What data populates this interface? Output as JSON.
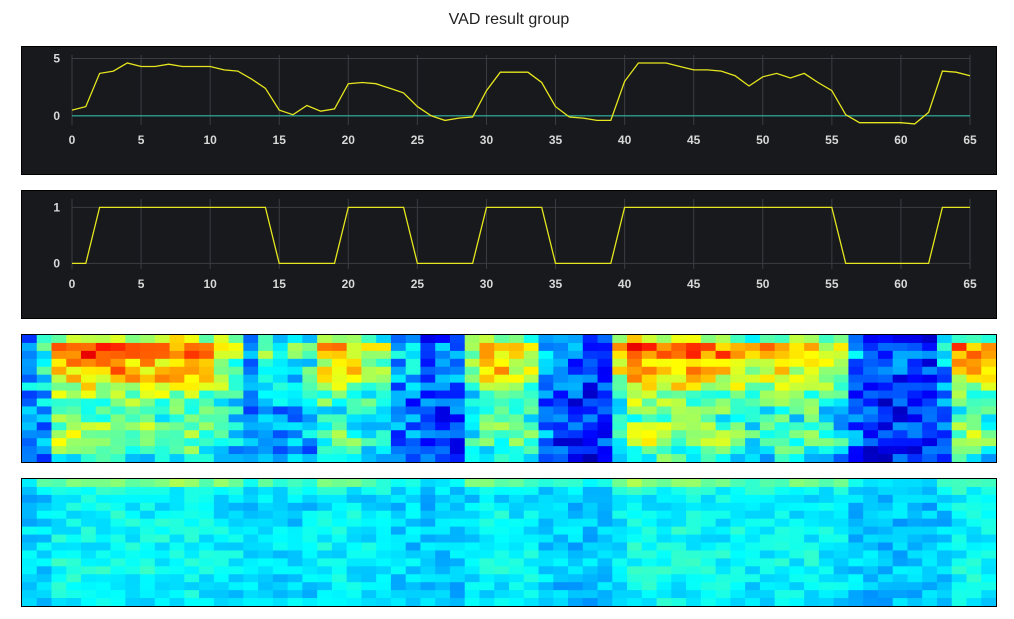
{
  "title": "VAD result group",
  "colors": {
    "background": "#ffffff",
    "plot_background": "#17191d",
    "grid": "#3a3d42",
    "line": "#e6e61e",
    "zero_line": "#2fb5a3",
    "tick_text": "#d8d8d8"
  },
  "chart_data": [
    {
      "type": "line",
      "x": [
        0,
        1,
        2,
        3,
        4,
        5,
        6,
        7,
        8,
        9,
        10,
        11,
        12,
        13,
        14,
        15,
        16,
        17,
        18,
        19,
        20,
        21,
        22,
        23,
        24,
        25,
        26,
        27,
        28,
        29,
        30,
        31,
        32,
        33,
        34,
        35,
        36,
        37,
        38,
        39,
        40,
        41,
        42,
        43,
        44,
        45,
        46,
        47,
        48,
        49,
        50,
        51,
        52,
        53,
        54,
        55,
        56,
        57,
        58,
        59,
        60,
        61,
        62,
        63,
        64,
        65
      ],
      "series": [
        {
          "values": [
            0.5,
            0.8,
            3.7,
            3.9,
            4.6,
            4.3,
            4.3,
            4.5,
            4.3,
            4.3,
            4.3,
            4.0,
            3.9,
            3.2,
            2.4,
            0.5,
            0.1,
            0.9,
            0.4,
            0.6,
            2.8,
            2.9,
            2.8,
            2.4,
            2.0,
            0.8,
            0.0,
            -0.4,
            -0.2,
            -0.1,
            2.2,
            3.8,
            3.8,
            3.8,
            2.9,
            0.8,
            -0.1,
            -0.2,
            -0.4,
            -0.4,
            3.0,
            4.6,
            4.6,
            4.6,
            4.3,
            4.0,
            4.0,
            3.9,
            3.5,
            2.6,
            3.4,
            3.7,
            3.3,
            3.7,
            2.9,
            2.2,
            0.1,
            -0.6,
            -0.6,
            -0.6,
            -0.6,
            -0.7,
            0.3,
            3.9,
            3.8,
            3.5
          ]
        }
      ],
      "xticks": [
        0,
        5,
        10,
        15,
        20,
        25,
        30,
        35,
        40,
        45,
        50,
        55,
        60,
        65
      ],
      "yticks": [
        0,
        5
      ],
      "xlim": [
        0,
        65
      ],
      "ylim": [
        -0.8,
        5.3
      ],
      "grid": true,
      "zero_line": true
    },
    {
      "type": "line",
      "x": [
        0,
        1,
        2,
        3,
        4,
        5,
        6,
        7,
        8,
        9,
        10,
        11,
        12,
        13,
        14,
        15,
        16,
        17,
        18,
        19,
        20,
        21,
        22,
        23,
        24,
        25,
        26,
        27,
        28,
        29,
        30,
        31,
        32,
        33,
        34,
        35,
        36,
        37,
        38,
        39,
        40,
        41,
        42,
        43,
        44,
        45,
        46,
        47,
        48,
        49,
        50,
        51,
        52,
        53,
        54,
        55,
        56,
        57,
        58,
        59,
        60,
        61,
        62,
        63,
        64,
        65
      ],
      "series": [
        {
          "values": [
            0,
            0,
            1,
            1,
            1,
            1,
            1,
            1,
            1,
            1,
            1,
            1,
            1,
            1,
            1,
            0,
            0,
            0,
            0,
            0,
            1,
            1,
            1,
            1,
            1,
            0,
            0,
            0,
            0,
            0,
            1,
            1,
            1,
            1,
            1,
            0,
            0,
            0,
            0,
            0,
            1,
            1,
            1,
            1,
            1,
            1,
            1,
            1,
            1,
            1,
            1,
            1,
            1,
            1,
            1,
            1,
            0,
            0,
            0,
            0,
            0,
            0,
            0,
            1,
            1,
            1
          ]
        }
      ],
      "xticks": [
        0,
        5,
        10,
        15,
        20,
        25,
        30,
        35,
        40,
        45,
        50,
        55,
        60,
        65
      ],
      "yticks": [
        0,
        1
      ],
      "xlim": [
        0,
        65
      ],
      "ylim": [
        -0.1,
        1.15
      ],
      "grid": true,
      "zero_line": false
    },
    {
      "type": "heatmap",
      "columns": 66,
      "rows": 16,
      "colormap": "jet",
      "row_profile": [
        0.55,
        0.82,
        0.8,
        0.7,
        0.72,
        0.65,
        0.58,
        0.5,
        0.45,
        0.42,
        0.4,
        0.45,
        0.5,
        0.5,
        0.42,
        0.35
      ],
      "frame_energy": [
        0.35,
        0.45,
        0.95,
        0.95,
        1.0,
        0.95,
        0.95,
        0.97,
        0.95,
        0.95,
        0.95,
        0.9,
        0.88,
        0.78,
        0.6,
        0.25,
        0.5,
        0.42,
        0.45,
        0.48,
        0.8,
        0.82,
        0.8,
        0.72,
        0.62,
        0.3,
        0.3,
        0.2,
        0.18,
        0.2,
        0.65,
        0.85,
        0.85,
        0.85,
        0.72,
        0.3,
        0.15,
        0.15,
        0.1,
        0.1,
        0.8,
        1.0,
        1.0,
        1.0,
        0.95,
        0.92,
        0.92,
        0.9,
        0.85,
        0.7,
        0.82,
        0.86,
        0.8,
        0.86,
        0.72,
        0.62,
        0.25,
        0.12,
        0.12,
        0.12,
        0.12,
        0.1,
        0.3,
        0.88,
        0.88,
        0.82
      ]
    },
    {
      "type": "heatmap",
      "columns": 66,
      "rows": 16,
      "colormap": "jet",
      "row_profile": [
        0.7,
        0.4,
        0.3,
        0.32,
        0.35,
        0.33,
        0.36,
        0.35,
        0.34,
        0.36,
        0.37,
        0.36,
        0.35,
        0.34,
        0.33,
        0.32
      ],
      "frame_energy": [
        0.35,
        0.45,
        0.95,
        0.95,
        1.0,
        0.95,
        0.95,
        0.97,
        0.95,
        0.95,
        0.95,
        0.9,
        0.88,
        0.78,
        0.6,
        0.25,
        0.5,
        0.42,
        0.45,
        0.48,
        0.8,
        0.82,
        0.8,
        0.72,
        0.62,
        0.3,
        0.3,
        0.2,
        0.18,
        0.2,
        0.65,
        0.85,
        0.85,
        0.85,
        0.72,
        0.3,
        0.15,
        0.15,
        0.1,
        0.1,
        0.8,
        1.0,
        1.0,
        1.0,
        0.95,
        0.92,
        0.92,
        0.9,
        0.85,
        0.7,
        0.82,
        0.86,
        0.8,
        0.86,
        0.72,
        0.62,
        0.25,
        0.12,
        0.12,
        0.12,
        0.12,
        0.1,
        0.3,
        0.88,
        0.88,
        0.82
      ]
    }
  ]
}
